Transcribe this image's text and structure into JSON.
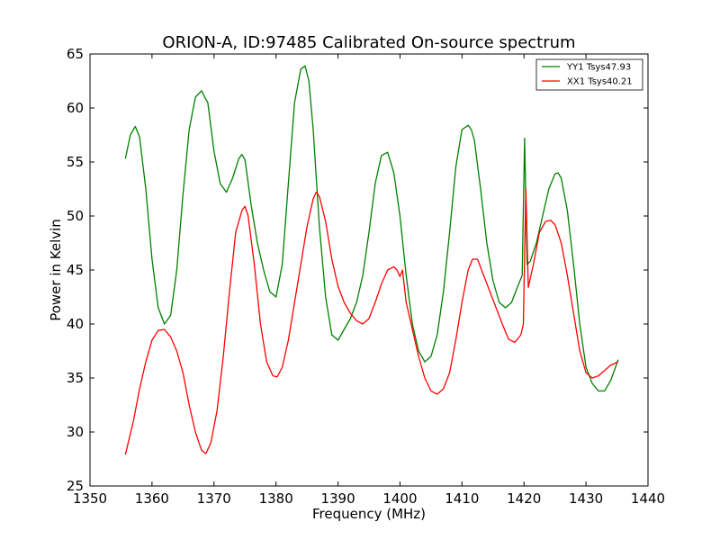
{
  "chart_data": {
    "type": "line",
    "title": "ORION-A, ID:97485 Calibrated On-source spectrum",
    "xlabel": "Frequency (MHz)",
    "ylabel": "Power in Kelvin",
    "xlim": [
      1350,
      1440
    ],
    "ylim": [
      25,
      65
    ],
    "xticks": [
      "1350",
      "1360",
      "1370",
      "1380",
      "1390",
      "1400",
      "1410",
      "1420",
      "1430",
      "1440"
    ],
    "yticks": [
      "25",
      "30",
      "35",
      "40",
      "45",
      "50",
      "55",
      "60",
      "65"
    ],
    "grid": false,
    "legend_position": "top-right",
    "series": [
      {
        "name": "YY1 Tsys47.93",
        "color": "#008000",
        "x": [
          1355.7,
          1356.5,
          1357.3,
          1358.0,
          1359.0,
          1360.0,
          1361.0,
          1362.0,
          1363.0,
          1364.0,
          1365.0,
          1366.0,
          1367.0,
          1368.0,
          1368.5,
          1369.0,
          1370.0,
          1371.0,
          1372.0,
          1373.0,
          1374.0,
          1374.5,
          1375.0,
          1376.0,
          1377.0,
          1378.0,
          1379.0,
          1380.0,
          1381.0,
          1382.0,
          1383.0,
          1384.0,
          1384.7,
          1385.3,
          1386.0,
          1387.0,
          1388.0,
          1389.0,
          1390.0,
          1391.0,
          1392.0,
          1393.0,
          1394.0,
          1395.0,
          1396.0,
          1397.0,
          1398.0,
          1399.0,
          1400.0,
          1401.0,
          1402.0,
          1403.0,
          1404.0,
          1405.0,
          1406.0,
          1407.0,
          1408.0,
          1409.0,
          1410.0,
          1411.0,
          1411.5,
          1412.0,
          1413.0,
          1414.0,
          1415.0,
          1416.0,
          1417.0,
          1418.0,
          1419.0,
          1419.7,
          1420.1,
          1420.5,
          1421.0,
          1422.0,
          1423.0,
          1424.0,
          1425.0,
          1425.5,
          1426.0,
          1427.0,
          1428.0,
          1429.0,
          1430.0,
          1431.0,
          1432.0,
          1433.0,
          1434.0,
          1435.2
        ],
        "y": [
          55.3,
          57.5,
          58.3,
          57.3,
          52.5,
          46.0,
          41.5,
          40.0,
          40.8,
          45.0,
          52.0,
          58.0,
          61.0,
          61.6,
          61.0,
          60.5,
          56.0,
          53.0,
          52.2,
          53.5,
          55.3,
          55.7,
          55.2,
          51.0,
          47.5,
          45.0,
          43.0,
          42.5,
          45.5,
          53.0,
          60.5,
          63.6,
          63.9,
          62.5,
          58.0,
          49.0,
          42.5,
          39.0,
          38.5,
          39.5,
          40.5,
          42.0,
          44.5,
          48.5,
          53.0,
          55.6,
          55.9,
          54.0,
          50.0,
          44.5,
          40.0,
          37.5,
          36.5,
          37.0,
          39.0,
          43.0,
          48.5,
          54.5,
          58.0,
          58.4,
          58.0,
          57.0,
          52.5,
          47.5,
          44.0,
          42.0,
          41.5,
          42.0,
          43.5,
          44.5,
          57.2,
          45.5,
          45.8,
          47.5,
          50.0,
          52.5,
          53.9,
          54.0,
          53.5,
          50.5,
          45.5,
          40.0,
          36.0,
          34.5,
          33.8,
          33.8,
          34.8,
          36.7
        ]
      },
      {
        "name": "XX1 Tsys40.21",
        "color": "#ff0000",
        "x": [
          1355.7,
          1357.0,
          1358.0,
          1359.0,
          1360.0,
          1361.0,
          1362.0,
          1363.0,
          1364.0,
          1365.0,
          1366.0,
          1367.0,
          1368.0,
          1368.7,
          1369.5,
          1370.5,
          1371.5,
          1372.5,
          1373.5,
          1374.5,
          1375.0,
          1375.5,
          1376.5,
          1377.5,
          1378.5,
          1379.5,
          1380.2,
          1381.0,
          1382.0,
          1383.0,
          1384.0,
          1385.0,
          1386.0,
          1386.5,
          1387.0,
          1388.0,
          1389.0,
          1390.0,
          1391.0,
          1392.0,
          1393.0,
          1394.0,
          1395.0,
          1396.0,
          1397.0,
          1398.0,
          1399.0,
          1399.5,
          1400.0,
          1400.4,
          1401.0,
          1402.0,
          1403.0,
          1404.0,
          1405.0,
          1406.0,
          1407.0,
          1408.0,
          1409.0,
          1410.0,
          1411.0,
          1411.7,
          1412.5,
          1413.5,
          1414.5,
          1415.5,
          1416.5,
          1417.5,
          1418.5,
          1419.5,
          1419.9,
          1420.3,
          1420.7,
          1421.5,
          1422.5,
          1423.5,
          1424.3,
          1425.0,
          1426.0,
          1427.0,
          1428.0,
          1429.0,
          1430.0,
          1431.0,
          1432.0,
          1433.0,
          1434.0,
          1435.2
        ],
        "y": [
          27.9,
          31.0,
          34.0,
          36.5,
          38.5,
          39.4,
          39.5,
          38.8,
          37.5,
          35.5,
          32.5,
          30.0,
          28.3,
          28.0,
          29.0,
          32.0,
          37.0,
          43.0,
          48.5,
          50.5,
          50.9,
          50.0,
          45.5,
          40.0,
          36.5,
          35.2,
          35.1,
          36.0,
          38.5,
          42.0,
          45.5,
          49.0,
          51.6,
          52.2,
          51.8,
          49.5,
          46.0,
          43.5,
          42.0,
          41.0,
          40.3,
          40.0,
          40.5,
          42.0,
          43.7,
          45.0,
          45.3,
          45.0,
          44.4,
          45.0,
          42.0,
          39.5,
          37.0,
          35.0,
          33.8,
          33.5,
          34.0,
          35.5,
          38.5,
          42.0,
          45.0,
          46.0,
          46.0,
          44.5,
          43.0,
          41.5,
          40.0,
          38.6,
          38.3,
          39.0,
          40.0,
          52.5,
          43.4,
          45.5,
          48.5,
          49.5,
          49.6,
          49.2,
          47.5,
          44.5,
          41.0,
          37.5,
          35.5,
          35.0,
          35.2,
          35.7,
          36.2,
          36.5
        ]
      }
    ]
  }
}
